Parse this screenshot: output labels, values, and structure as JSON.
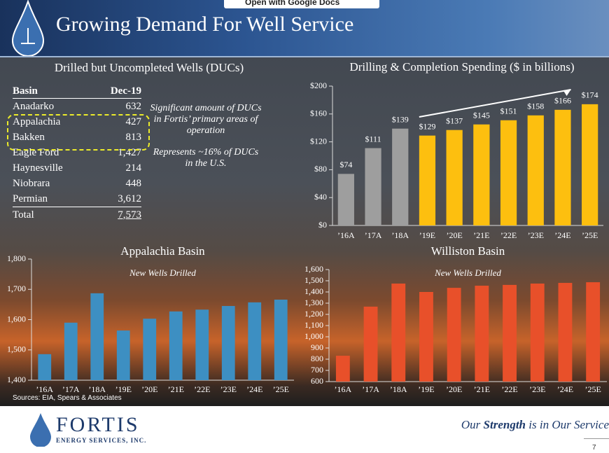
{
  "toolbar": {
    "button": "Open with Google Docs"
  },
  "header": {
    "title": "Growing Demand For Well Service"
  },
  "table": {
    "title": "Drilled but Uncompleted Wells (DUCs)",
    "columns": [
      "Basin",
      "Dec-19"
    ],
    "rows": [
      [
        "Anadarko",
        "632"
      ],
      [
        "Appalachia",
        "427"
      ],
      [
        "Bakken",
        "813"
      ],
      [
        "Eagle Ford",
        "1,427"
      ],
      [
        "Haynesville",
        "214"
      ],
      [
        "Niobrara",
        "448"
      ],
      [
        "Permian",
        "3,612"
      ],
      [
        "Total",
        "7,573"
      ]
    ]
  },
  "notes": [
    "Significant amount of DUCs in Fortis’ primary areas of operation",
    "Represents ~16% of DUCs in the U.S."
  ],
  "chart_data": [
    {
      "type": "bar",
      "title": "Drilling & Completion Spending ($ in billions)",
      "categories": [
        "’16A",
        "’17A",
        "’18A",
        "’19E",
        "’20E",
        "’21E",
        "’22E",
        "’23E",
        "’24E",
        "’25E"
      ],
      "values": [
        74,
        111,
        139,
        129,
        137,
        145,
        151,
        158,
        166,
        174
      ],
      "value_labels": [
        "$74",
        "$111",
        "$139",
        "$129",
        "$137",
        "$145",
        "$151",
        "$158",
        "$166",
        "$174"
      ],
      "colors": [
        "#9e9e9e",
        "#9e9e9e",
        "#9e9e9e",
        "#fdbf0f",
        "#fdbf0f",
        "#fdbf0f",
        "#fdbf0f",
        "#fdbf0f",
        "#fdbf0f",
        "#fdbf0f"
      ],
      "ylim": [
        0,
        200
      ],
      "yticks": [
        {
          "value": 0,
          "label": "$0"
        },
        {
          "value": 40,
          "label": "$40"
        },
        {
          "value": 80,
          "label": "$80"
        },
        {
          "value": 120,
          "label": "$120"
        },
        {
          "value": 160,
          "label": "$160"
        },
        {
          "value": 200,
          "label": "$200"
        }
      ],
      "grid": false
    },
    {
      "type": "bar",
      "title": "Appalachia Basin",
      "subtitle": "New Wells Drilled",
      "categories": [
        "’16A",
        "’17A",
        "’18A",
        "’19E",
        "’20E",
        "’21E",
        "’22E",
        "’23E",
        "’24E",
        "’25E"
      ],
      "values": [
        1486,
        1590,
        1687,
        1564,
        1603,
        1627,
        1633,
        1645,
        1657,
        1666
      ],
      "color": "#3d8fc2",
      "ylim": [
        1400,
        1800
      ],
      "yticks": [
        {
          "value": 1400,
          "label": "1,400"
        },
        {
          "value": 1500,
          "label": "1,500"
        },
        {
          "value": 1600,
          "label": "1,600"
        },
        {
          "value": 1700,
          "label": "1,700"
        },
        {
          "value": 1800,
          "label": "1,800"
        }
      ],
      "grid": false
    },
    {
      "type": "bar",
      "title": "Williston Basin",
      "subtitle": "New Wells Drilled",
      "categories": [
        "’16A",
        "’17A",
        "’18A",
        "’19E",
        "’20E",
        "’21E",
        "’22E",
        "’23E",
        "’24E",
        "’25E"
      ],
      "values": [
        831,
        1269,
        1475,
        1400,
        1437,
        1456,
        1463,
        1475,
        1481,
        1487
      ],
      "color": "#e8502a",
      "ylim": [
        600,
        1600
      ],
      "yticks": [
        600,
        700,
        800,
        900,
        {
          "value": 1000,
          "label": "1,000"
        },
        {
          "value": 1100,
          "label": "1,100"
        },
        {
          "value": 1200,
          "label": "1,200"
        },
        {
          "value": 1300,
          "label": "1,300"
        },
        {
          "value": 1400,
          "label": "1,400"
        },
        {
          "value": 1500,
          "label": "1,500"
        },
        {
          "value": 1600,
          "label": "1,600"
        }
      ],
      "grid": false
    }
  ],
  "sources": "Sources: EIA, Spears & Associates",
  "footer": {
    "logo": "FORTIS",
    "logo_sub": "ENERGY SERVICES, INC.",
    "tagline_before": "Our",
    "tagline_emphasis": "Strength",
    "tagline_after": "is in Our Service",
    "page": "7"
  }
}
